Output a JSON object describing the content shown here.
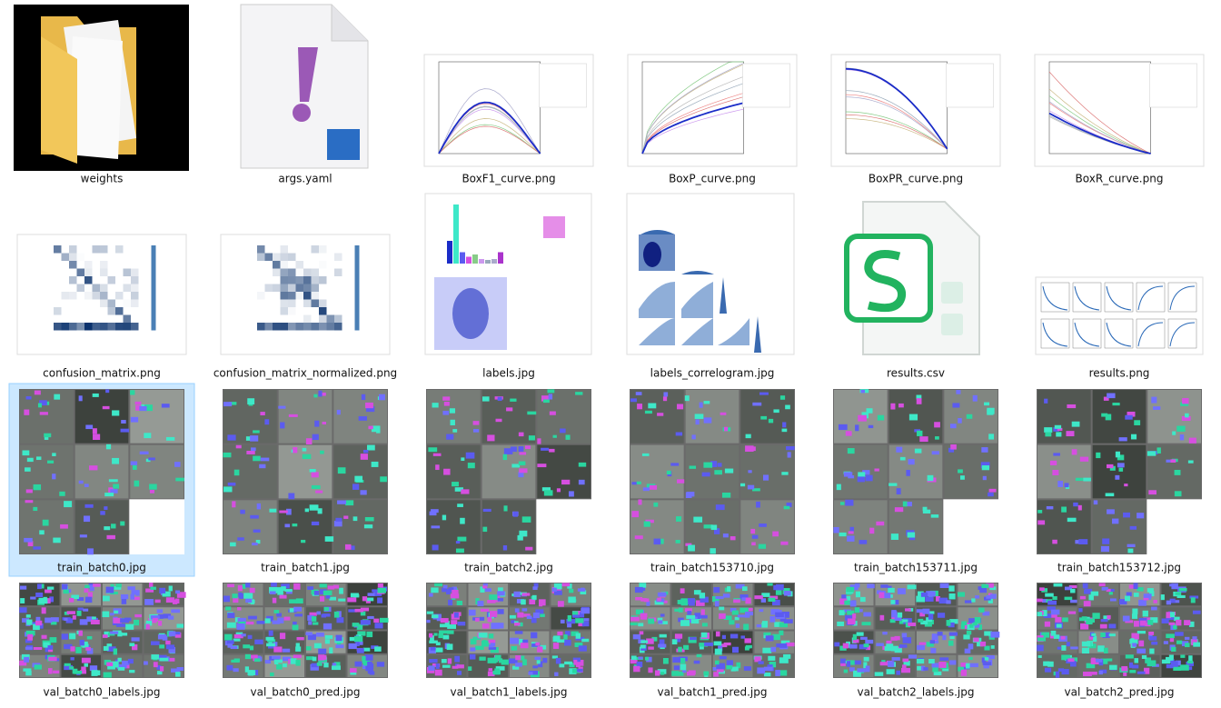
{
  "files": [
    {
      "name": "weights"
    },
    {
      "name": "args.yaml"
    },
    {
      "name": "BoxF1_curve.png"
    },
    {
      "name": "BoxP_curve.png"
    },
    {
      "name": "BoxPR_curve.png"
    },
    {
      "name": "BoxR_curve.png"
    },
    {
      "name": "confusion_matrix.png"
    },
    {
      "name": "confusion_matrix_normalized.png"
    },
    {
      "name": "labels.jpg"
    },
    {
      "name": "labels_correlogram.jpg"
    },
    {
      "name": "results.csv"
    },
    {
      "name": "results.png"
    },
    {
      "name": "train_batch0.jpg",
      "selected": true
    },
    {
      "name": "train_batch1.jpg"
    },
    {
      "name": "train_batch2.jpg"
    },
    {
      "name": "train_batch153710.jpg"
    },
    {
      "name": "train_batch153711.jpg"
    },
    {
      "name": "train_batch153712.jpg"
    },
    {
      "name": "val_batch0_labels.jpg"
    },
    {
      "name": "val_batch0_pred.jpg"
    },
    {
      "name": "val_batch1_labels.jpg"
    },
    {
      "name": "val_batch1_pred.jpg"
    },
    {
      "name": "val_batch2_labels.jpg"
    },
    {
      "name": "val_batch2_pred.jpg"
    }
  ]
}
